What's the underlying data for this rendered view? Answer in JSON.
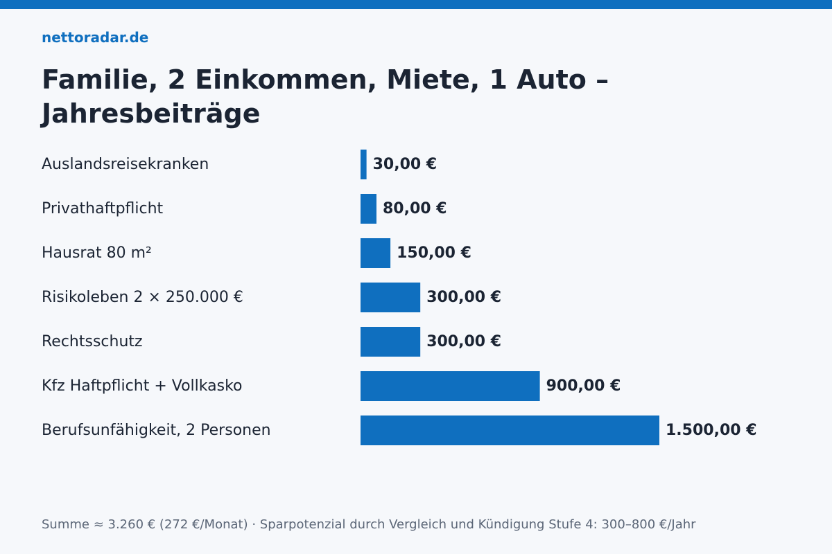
{
  "brand": "nettoradar.de",
  "footer_note": "Summe ≈ 3.260 € (272 €/Monat) · Sparpotenzial durch Vergleich und Kündigung Stufe 4: 300–800 €/Jahr",
  "colors": {
    "accent": "#0f6fbf",
    "background": "#f6f8fb",
    "text": "#1b2433",
    "muted": "#5b6677"
  },
  "chart_data": {
    "type": "bar",
    "orientation": "horizontal",
    "title": "Familie, 2 Einkommen, Miete, 1 Auto – Jahresbeiträge",
    "categories": [
      "Auslandsreisekranken",
      "Privathaftpflicht",
      "Hausrat 80 m²",
      "Risikoleben 2 × 250.000 €",
      "Rechtsschutz",
      "Kfz Haftpflicht + Vollkasko",
      "Berufsunfähigkeit, 2 Personen"
    ],
    "values": [
      30,
      80,
      150,
      300,
      300,
      900,
      1500
    ],
    "value_labels": [
      "30,00 €",
      "80,00 €",
      "150,00 €",
      "300,00 €",
      "300,00 €",
      "900,00 €",
      "1.500,00 €"
    ],
    "unit": "€",
    "xlim": [
      0,
      1500
    ],
    "grid": false,
    "legend": "none"
  }
}
